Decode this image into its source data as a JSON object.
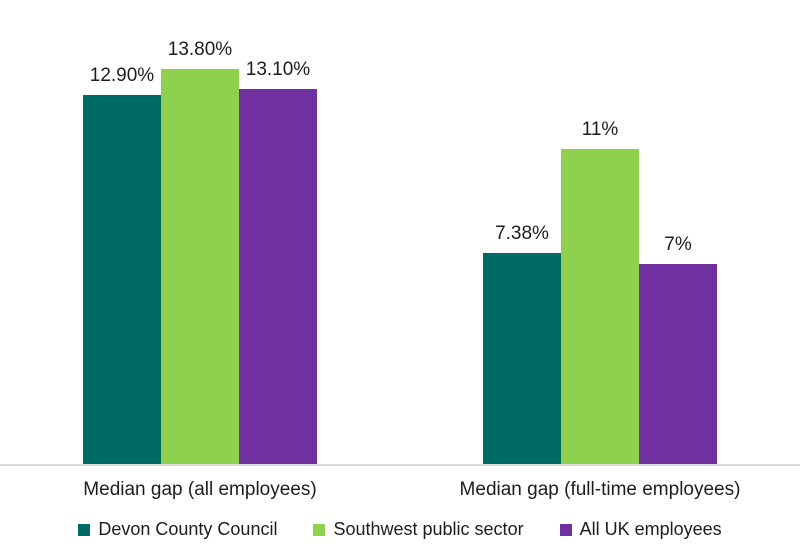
{
  "chart_data": {
    "type": "bar",
    "title": "",
    "xlabel": "",
    "ylabel": "",
    "categories": [
      "Median gap (all employees)",
      "Median gap (full-time employees)"
    ],
    "series": [
      {
        "name": "Devon County Council",
        "color": "#006B66",
        "values": [
          12.9,
          7.38
        ],
        "data_labels": [
          "12.90%",
          "7.38%"
        ]
      },
      {
        "name": "Southwest public sector",
        "color": "#8FD04F",
        "values": [
          13.8,
          11
        ],
        "data_labels": [
          "13.80%",
          "11%"
        ]
      },
      {
        "name": "All UK employees",
        "color": "#7030A0",
        "values": [
          13.1,
          7
        ],
        "data_labels": [
          "13.10%",
          "7%"
        ]
      }
    ],
    "ylim": [
      0,
      16.2
    ],
    "y_axis_visible": false,
    "grid": false,
    "legend_position": "bottom",
    "axis_line_color": "#D9D9D9",
    "label_text_color": "#1D1D1D",
    "background_color": "#FFFFFF"
  }
}
